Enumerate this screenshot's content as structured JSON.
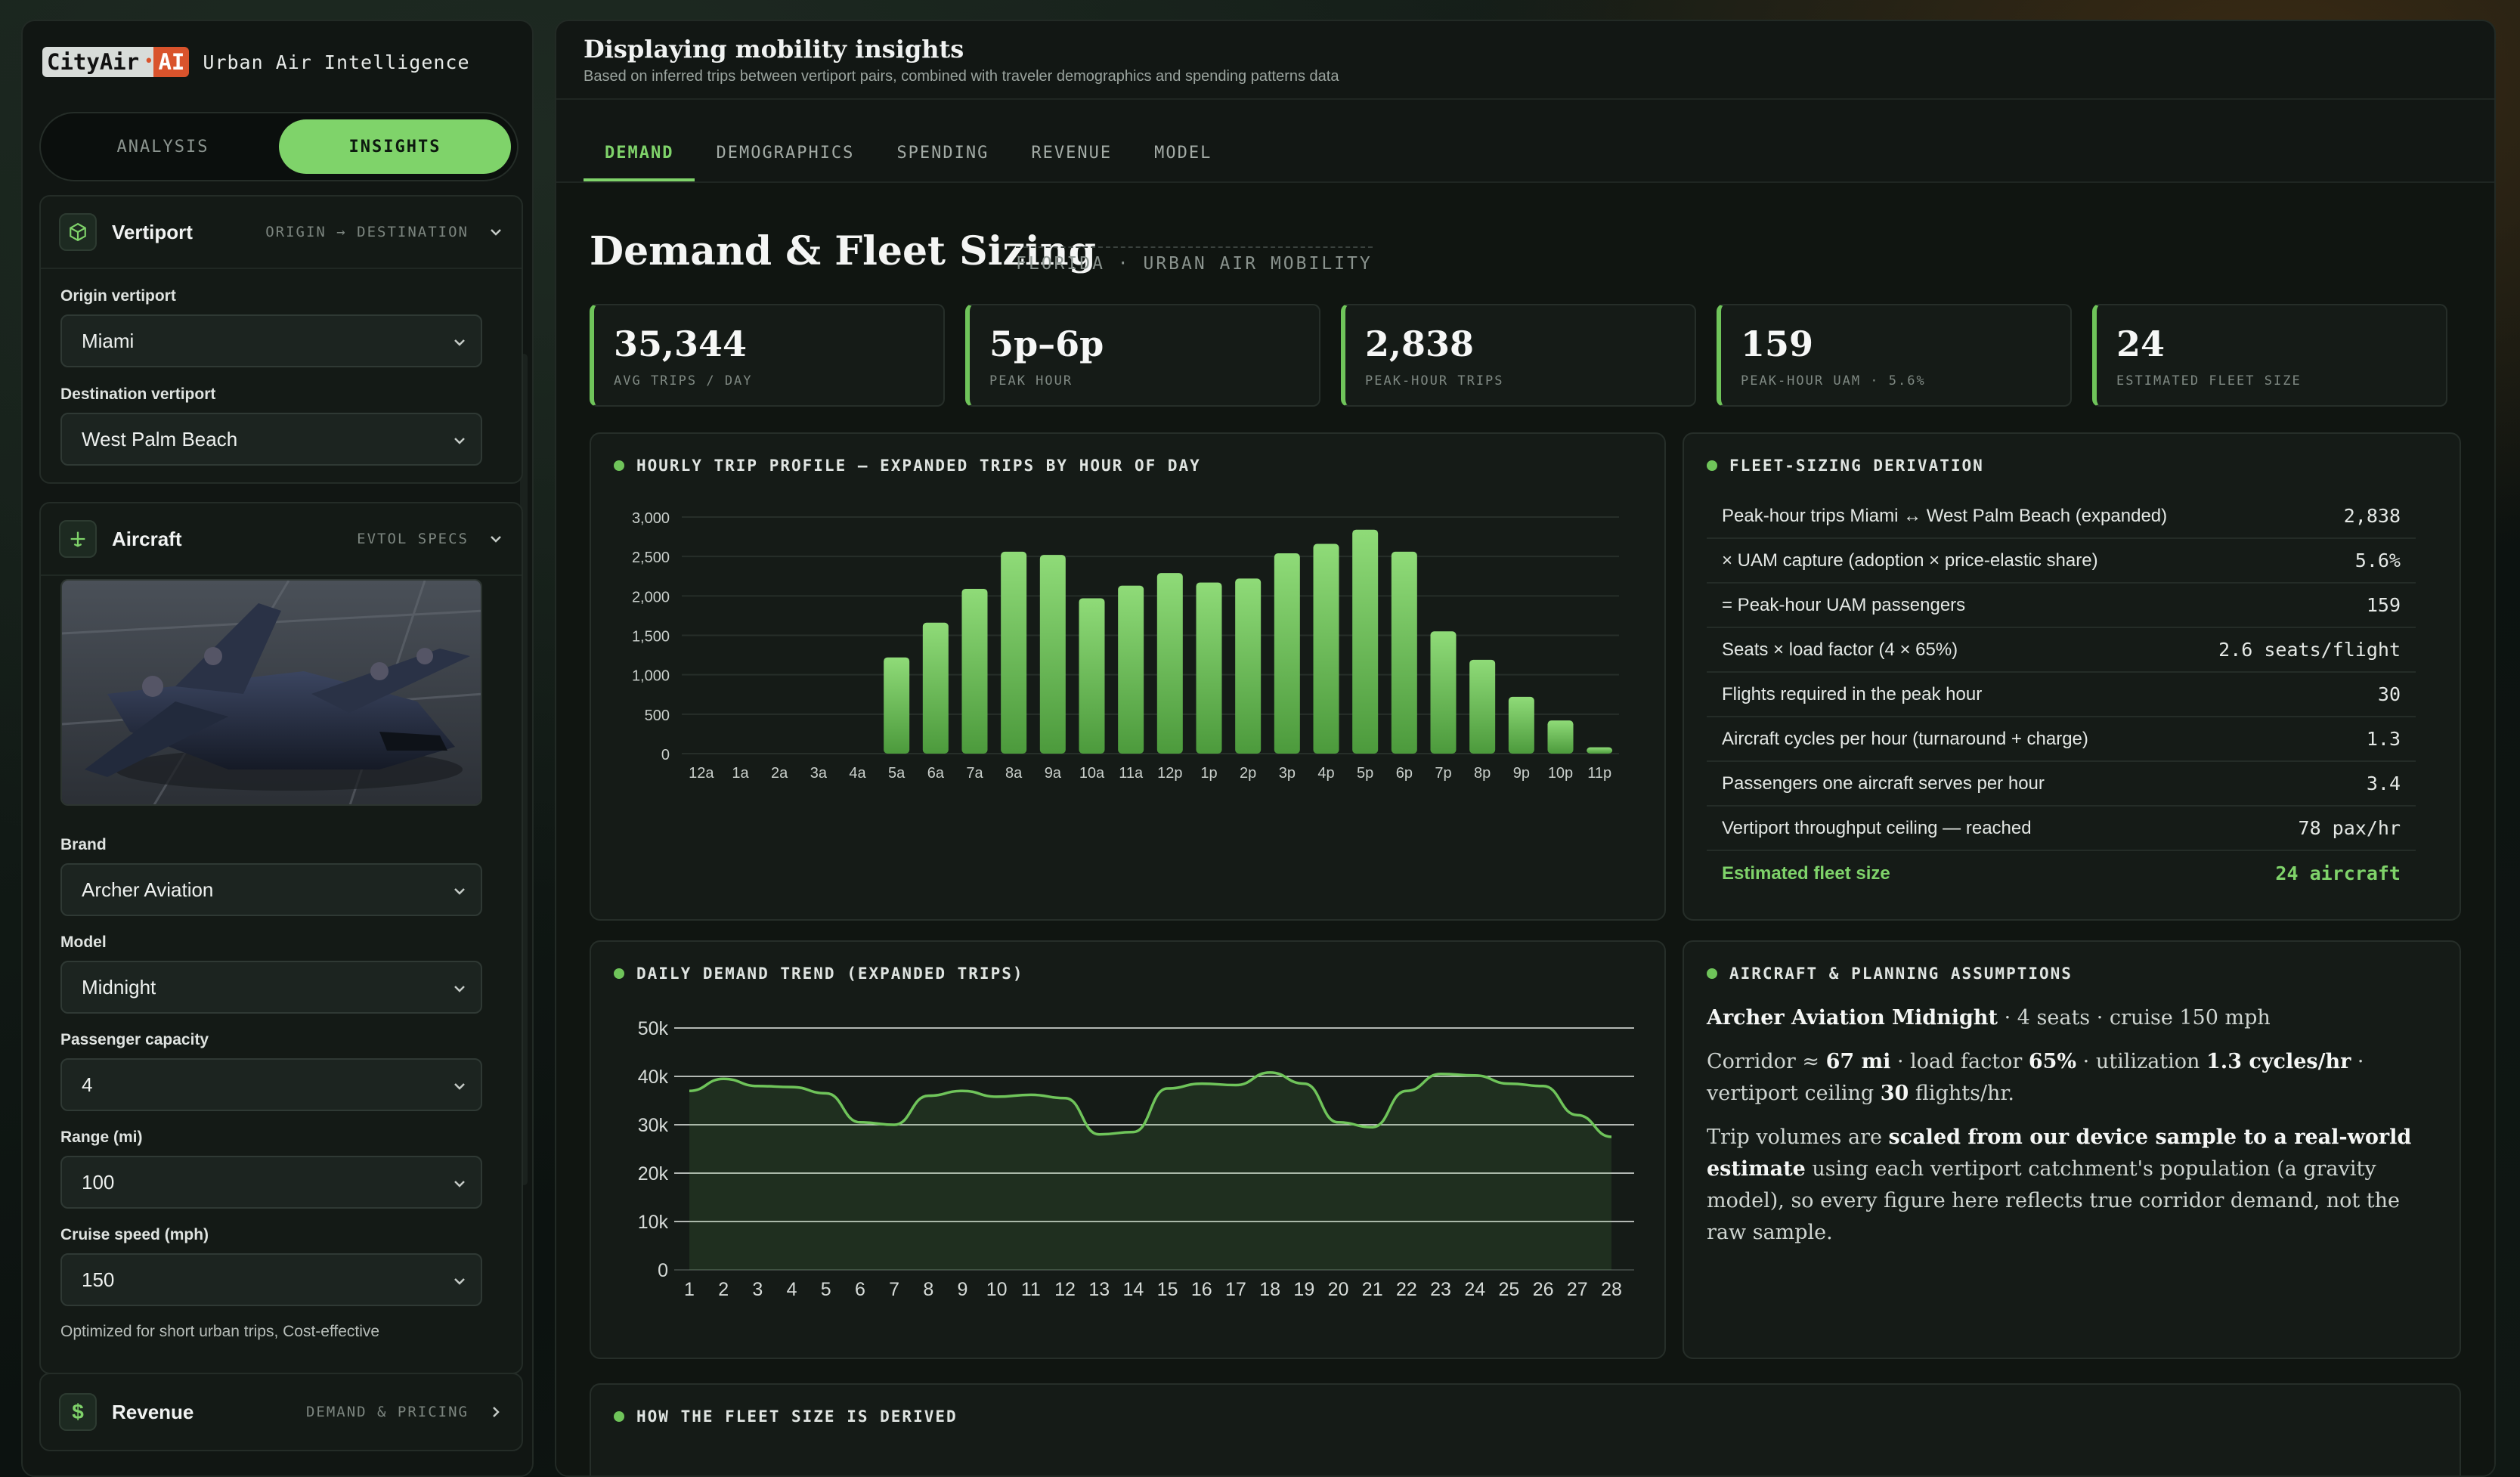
{
  "brand": {
    "logo_main": "CityAir",
    "logo_dot": "•",
    "logo_ai": "AI",
    "subtitle": "Urban Air Intelligence"
  },
  "mode_toggle": {
    "analysis": "ANALYSIS",
    "insights": "INSIGHTS"
  },
  "vertiport": {
    "title": "Vertiport",
    "tag": "ORIGIN → DESTINATION",
    "origin_label": "Origin vertiport",
    "origin_value": "Miami",
    "destination_label": "Destination vertiport",
    "destination_value": "West Palm Beach"
  },
  "aircraft": {
    "title": "Aircraft",
    "tag": "EVTOL SPECS",
    "brand_label": "Brand",
    "brand_value": "Archer Aviation",
    "model_label": "Model",
    "model_value": "Midnight",
    "capacity_label": "Passenger capacity",
    "capacity_value": "4",
    "range_label": "Range (mi)",
    "range_value": "100",
    "speed_label": "Cruise speed (mph)",
    "speed_value": "150",
    "hint": "Optimized for short urban trips, Cost-effective"
  },
  "revenue_card": {
    "title": "Revenue",
    "tag": "DEMAND & PRICING"
  },
  "header": {
    "title": "Displaying mobility insights",
    "subtitle": "Based on inferred trips between vertiport pairs, combined with traveler demographics and spending patterns data"
  },
  "tabs": [
    "DEMAND",
    "DEMOGRAPHICS",
    "SPENDING",
    "REVENUE",
    "MODEL"
  ],
  "section": {
    "title": "Demand & Fleet Sizing",
    "tag": "FLORIDA · URBAN AIR MOBILITY"
  },
  "kpis": [
    {
      "value": "35,344",
      "label": "AVG TRIPS / DAY"
    },
    {
      "value": "5p–6p",
      "label": "PEAK HOUR"
    },
    {
      "value": "2,838",
      "label": "PEAK-HOUR TRIPS"
    },
    {
      "value": "159",
      "label": "PEAK-HOUR UAM · 5.6%"
    },
    {
      "value": "24",
      "label": "ESTIMATED FLEET SIZE"
    }
  ],
  "hourly_title": "HOURLY TRIP PROFILE — EXPANDED TRIPS BY HOUR OF DAY",
  "daily_title": "DAILY DEMAND TREND (EXPANDED TRIPS)",
  "fleet_title": "FLEET-SIZING DERIVATION",
  "fleet_rows": [
    {
      "label": "Peak-hour trips Miami ↔ West Palm Beach (expanded)",
      "value": "2,838"
    },
    {
      "label": "× UAM capture (adoption × price-elastic share)",
      "value": "5.6%"
    },
    {
      "label": "= Peak-hour UAM passengers",
      "value": "159"
    },
    {
      "label": "Seats × load factor (4 × 65%)",
      "value": "2.6 seats/flight"
    },
    {
      "label": "Flights required in the peak hour",
      "value": "30"
    },
    {
      "label": "Aircraft cycles per hour (turnaround + charge)",
      "value": "1.3"
    },
    {
      "label": "Passengers one aircraft serves per hour",
      "value": "3.4"
    },
    {
      "label": "Vertiport throughput ceiling — reached",
      "value": "78 pax/hr"
    },
    {
      "label": "Estimated fleet size",
      "value": "24 aircraft"
    }
  ],
  "assumptions_title": "AIRCRAFT & PLANNING ASSUMPTIONS",
  "assumptions": {
    "line1_bold": "Archer Aviation Midnight",
    "line1_rest": " · 4 seats · cruise 150 mph",
    "line2_a": "Corridor ≈ ",
    "line2_b": "67 mi",
    "line2_c": " · load factor ",
    "line2_d": "65%",
    "line2_e": " · utilization ",
    "line2_f": "1.3 cycles/hr",
    "line2_g": " · vertiport ceiling ",
    "line2_h": "30",
    "line2_i": " flights/hr.",
    "line3_a": "Trip volumes are ",
    "line3_b": "scaled from our device sample to a real-world estimate",
    "line3_c": " using each vertiport catchment's population (a gravity model), so every figure here reflects true corridor demand, not the raw sample."
  },
  "derivation_title": "HOW THE FLEET SIZE IS DERIVED",
  "colors": {
    "accent": "#7fd36a",
    "panel": "#151b17",
    "background": "#101511"
  },
  "chart_data": [
    {
      "type": "bar",
      "title": "HOURLY TRIP PROFILE — EXPANDED TRIPS BY HOUR OF DAY",
      "categories": [
        "12a",
        "1a",
        "2a",
        "3a",
        "4a",
        "5a",
        "6a",
        "7a",
        "8a",
        "9a",
        "10a",
        "11a",
        "12p",
        "1p",
        "2p",
        "3p",
        "4p",
        "5p",
        "6p",
        "7p",
        "8p",
        "9p",
        "10p",
        "11p"
      ],
      "values": [
        0,
        0,
        0,
        0,
        0,
        1220,
        1660,
        2090,
        2560,
        2520,
        1970,
        2130,
        2290,
        2170,
        2220,
        2540,
        2660,
        2840,
        2560,
        1550,
        1190,
        720,
        420,
        80
      ],
      "yticks": [
        "0",
        "500",
        "1,000",
        "1,500",
        "2,000",
        "2,500",
        "3,000"
      ],
      "ylim": [
        0,
        3000
      ]
    },
    {
      "type": "area",
      "title": "DAILY DEMAND TREND (EXPANDED TRIPS)",
      "x": [
        1,
        2,
        3,
        4,
        5,
        6,
        7,
        8,
        9,
        10,
        11,
        12,
        13,
        14,
        15,
        16,
        17,
        18,
        19,
        20,
        21,
        22,
        23,
        24,
        25,
        26,
        27,
        28
      ],
      "values": [
        37000,
        39500,
        38000,
        37800,
        36500,
        30500,
        30000,
        36000,
        37000,
        35800,
        36200,
        35500,
        28000,
        28500,
        37500,
        38500,
        38200,
        40800,
        38500,
        30500,
        29500,
        37000,
        40500,
        40200,
        38500,
        38000,
        32000,
        27500
      ],
      "yticks": [
        "0",
        "10k",
        "20k",
        "30k",
        "40k",
        "50k"
      ],
      "ylim": [
        0,
        50000
      ]
    }
  ]
}
